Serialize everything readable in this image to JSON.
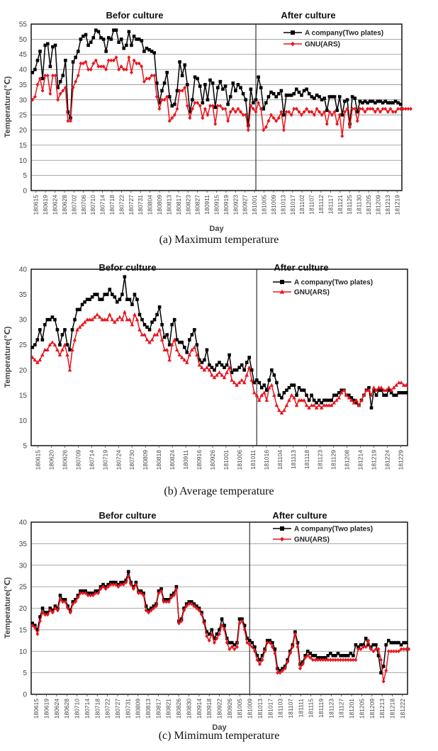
{
  "figure": {
    "captions": [
      "(a) Maximum temperature",
      "(b) Average temperature",
      "(c) Mimimum temperature"
    ],
    "colors": {
      "series_a": "#000000",
      "series_b": "#e8161e",
      "grid": "#8c8c8c",
      "divider": "#333333"
    }
  },
  "chart_data": [
    {
      "type": "line",
      "panel_id": "a",
      "ylabel": "Temperature(℃)",
      "xlabel": "Day",
      "ylim": [
        0,
        55
      ],
      "yticks": [
        0,
        5,
        10,
        15,
        20,
        25,
        30,
        35,
        40,
        45,
        50,
        55
      ],
      "grid": true,
      "legend_position": "top-right",
      "regions": [
        "Befor culture",
        "After culture"
      ],
      "xtick_labels": [
        "180615",
        "180619",
        "180624",
        "180628",
        "180702",
        "180706",
        "180710",
        "180714",
        "180718",
        "180722",
        "180727",
        "180731",
        "180804",
        "180809",
        "180813",
        "180817",
        "180823",
        "180827",
        "180911",
        "180915",
        "180919",
        "180923",
        "180927",
        "181001",
        "181005",
        "181009",
        "181013",
        "181017",
        "181102",
        "181107",
        "181112",
        "181117",
        "181121",
        "181125",
        "181130",
        "181205",
        "181209",
        "181213",
        "181219"
      ],
      "divider_index": 88,
      "series": [
        {
          "name": "A company(Two plates)",
          "marker": "square",
          "values": [
            39,
            40,
            43,
            46,
            37,
            48,
            48.5,
            41,
            47.5,
            48,
            34,
            36,
            38,
            43,
            26,
            24,
            42.5,
            44,
            46,
            50,
            51,
            51.5,
            48,
            49,
            50.5,
            53,
            52.5,
            50.5,
            50,
            46,
            50.5,
            50,
            53,
            53,
            49,
            50,
            47,
            48,
            52.5,
            48,
            51,
            50,
            50,
            49.5,
            46,
            47,
            46.5,
            46,
            45.5,
            35.5,
            29,
            33,
            35.5,
            39,
            31,
            28,
            28.5,
            33,
            42.5,
            38,
            41.5,
            35,
            26,
            30,
            37.5,
            37,
            34.5,
            29,
            35,
            30,
            36.5,
            35.5,
            27.5,
            34,
            36,
            33.5,
            34.5,
            28.5,
            31,
            35.5,
            33,
            35,
            34,
            32,
            30,
            21.5,
            33.5,
            29,
            30,
            37.5,
            34,
            27,
            29,
            31,
            32.5,
            32,
            31,
            32,
            33,
            25,
            31.5,
            31.5,
            31.5,
            32,
            33.5,
            32.5,
            31.5,
            33,
            33.5,
            32,
            31,
            30.5,
            31.5,
            31,
            30,
            30.5,
            26.5,
            31,
            31,
            31,
            26.5,
            31,
            25,
            29.5,
            30,
            22,
            31,
            30.5,
            26,
            29.5,
            29,
            29.5,
            29,
            29.5,
            29.5,
            29,
            29.5,
            29.5,
            29,
            29.5,
            29,
            29,
            29,
            29.5,
            29,
            28.5
          ]
        },
        {
          "name": "GNU(ARS)",
          "marker": "diamond",
          "values": [
            30,
            31,
            35,
            37,
            33,
            38,
            38,
            32,
            38,
            38,
            30,
            32,
            33,
            34,
            23,
            23,
            34,
            36,
            38,
            42,
            42,
            42.5,
            40,
            40,
            42,
            43,
            41,
            41,
            41,
            40,
            43,
            43,
            43,
            44,
            40,
            41,
            40,
            40,
            44,
            39,
            43,
            42,
            42,
            41,
            36,
            37,
            37,
            38,
            38,
            31,
            27,
            30,
            30,
            31,
            23,
            24,
            25,
            27,
            33,
            33,
            34,
            28,
            24,
            27,
            29,
            29,
            28,
            24,
            27,
            25,
            28,
            28,
            22,
            28,
            28,
            27,
            27,
            23,
            26,
            27,
            26,
            27,
            26,
            25,
            25,
            20,
            28,
            27,
            26,
            29,
            27,
            20,
            21,
            23,
            25,
            24,
            23,
            24,
            26,
            20,
            26,
            26,
            25,
            27,
            27,
            26,
            25,
            26,
            27,
            26,
            26,
            25,
            27,
            26,
            25,
            26,
            22,
            26,
            25,
            26,
            22,
            25,
            18,
            26,
            27,
            21,
            27,
            27,
            23,
            27,
            27,
            26,
            27,
            27,
            27,
            26,
            27,
            26,
            27,
            27,
            26,
            27,
            26,
            26,
            27,
            27,
            27,
            27,
            27,
            27
          ]
        }
      ]
    },
    {
      "type": "line",
      "panel_id": "b",
      "ylabel": "Temperature(℃)",
      "xlabel": "",
      "ylim": [
        5,
        40
      ],
      "yticks": [
        5,
        10,
        15,
        20,
        25,
        30,
        35,
        40
      ],
      "grid": false,
      "legend_position": "top-right",
      "regions": [
        "Befor culture",
        "After culture"
      ],
      "xtick_labels": [
        "180615",
        "180620",
        "180626",
        "180709",
        "180714",
        "180719",
        "180724",
        "180730",
        "180809",
        "180818",
        "180824",
        "180911",
        "180916",
        "180926",
        "181001",
        "181006",
        "181011",
        "181016",
        "181104",
        "181113",
        "181118",
        "181123",
        "181129",
        "181208",
        "181214",
        "181219",
        "181224",
        "181229"
      ],
      "divider_index": 90,
      "series": [
        {
          "name": "A company(Two plates)",
          "marker": "square",
          "values": [
            24.5,
            25,
            26,
            28,
            26,
            29,
            30,
            30,
            30.5,
            30,
            28,
            25,
            27,
            28,
            25,
            24,
            28,
            30,
            32,
            32,
            33,
            33.5,
            34,
            34,
            34.5,
            35,
            35,
            34,
            34,
            35,
            35,
            36,
            35,
            34.5,
            33.5,
            34,
            35,
            38.5,
            34,
            34,
            33,
            35,
            34,
            31,
            30,
            29,
            28.5,
            28,
            29.5,
            30,
            31,
            32.5,
            29,
            26.5,
            27,
            25,
            29,
            30,
            26,
            25.5,
            25.5,
            24.5,
            23.5,
            26,
            27,
            28,
            25,
            22,
            21.5,
            22,
            24,
            21,
            20.5,
            20,
            21,
            21.5,
            21,
            20.5,
            21,
            23,
            19.5,
            20,
            20,
            20.5,
            21,
            20,
            21.5,
            22.5,
            20,
            17.5,
            18,
            17.5,
            16.5,
            17,
            16,
            18,
            20,
            19,
            17.5,
            15,
            14.5,
            15.5,
            16,
            16.5,
            17,
            17,
            15,
            16.5,
            16,
            16,
            15,
            14,
            15,
            14,
            13.5,
            14,
            13.5,
            14,
            14,
            14,
            14,
            15,
            15,
            15.5,
            16,
            16,
            15,
            15,
            14.5,
            14,
            13.5,
            13,
            14,
            15,
            16,
            16.5,
            12.5,
            16,
            15,
            16,
            16,
            15,
            15,
            16,
            15.5,
            15,
            15,
            15.5,
            15.5,
            15.5,
            15.5
          ]
        },
        {
          "name": "GNU(ARS)",
          "marker": "triangle",
          "values": [
            22.5,
            22,
            21.5,
            22,
            23,
            24,
            24,
            25,
            25.5,
            25,
            24,
            23,
            24,
            25,
            23,
            20,
            24,
            26,
            28,
            28.5,
            29,
            29.5,
            30,
            30,
            30,
            30.5,
            31,
            30.5,
            30,
            30,
            30,
            31,
            30,
            29.5,
            30,
            30.5,
            30,
            31.5,
            30,
            30,
            29,
            31,
            30,
            28,
            27,
            27,
            26,
            25.5,
            26,
            27,
            27,
            28,
            26,
            24,
            24,
            22,
            25,
            26,
            24,
            23,
            22.5,
            22,
            21.5,
            23,
            24,
            24.5,
            23,
            21,
            20.5,
            20,
            20.5,
            20,
            19,
            18.5,
            19,
            19.5,
            19,
            18.5,
            19.5,
            20.5,
            18,
            17.5,
            17,
            17.5,
            18,
            17.5,
            19,
            20.5,
            18,
            15.5,
            15,
            14,
            15,
            15.5,
            14,
            16.5,
            17,
            15,
            13,
            12,
            11.5,
            12,
            13,
            14,
            15,
            14.5,
            13,
            14,
            14,
            14,
            13,
            12.5,
            13,
            13,
            12.5,
            13,
            12.5,
            13,
            13,
            13,
            13,
            13.5,
            14,
            14.5,
            15.5,
            16,
            15,
            14.5,
            14,
            13.5,
            14,
            13,
            14,
            15,
            16,
            16,
            15,
            16.5,
            16,
            16.5,
            16.5,
            16,
            16,
            16.5,
            16,
            16.5,
            17,
            17.5,
            17.5,
            17,
            17
          ]
        }
      ]
    },
    {
      "type": "line",
      "panel_id": "c",
      "ylabel": "Temperature(℃)",
      "xlabel": "Day",
      "ylim": [
        0,
        40
      ],
      "yticks": [
        0,
        5,
        10,
        15,
        20,
        25,
        30,
        35,
        40
      ],
      "grid": true,
      "legend_position": "top-right",
      "regions": [
        "Befor culture",
        "After culture"
      ],
      "xtick_labels": [
        "180615",
        "180619",
        "180624",
        "180628",
        "180710",
        "180714",
        "180718",
        "180722",
        "180727",
        "180731",
        "180809",
        "180813",
        "180817",
        "180821",
        "180826",
        "180830",
        "180914",
        "180918",
        "180922",
        "180926",
        "181005",
        "181009",
        "181013",
        "181017",
        "181103",
        "181107",
        "181111",
        "181115",
        "181119",
        "181123",
        "181127",
        "181201",
        "181205",
        "181209",
        "181213",
        "181218",
        "181222"
      ],
      "divider_index": 86,
      "series": [
        {
          "name": "A company(Two plates)",
          "marker": "square",
          "values": [
            16.5,
            16,
            15,
            18,
            20,
            19,
            19,
            20,
            19.5,
            20.5,
            20,
            23,
            22,
            22,
            20.5,
            19.5,
            21.5,
            22,
            23,
            24,
            24,
            24,
            23.5,
            23.5,
            23.5,
            24,
            24,
            25,
            25.5,
            25,
            25.5,
            26,
            26,
            26,
            25.5,
            26,
            26,
            26.5,
            28.5,
            26,
            25,
            26,
            24,
            24,
            23.5,
            20.5,
            19.5,
            20,
            20.5,
            21,
            24,
            24.5,
            22,
            22,
            22,
            23,
            23.5,
            25,
            17,
            17.5,
            20,
            21,
            21.5,
            21.5,
            21,
            20.5,
            20,
            19,
            17,
            14.5,
            14,
            15,
            13,
            14,
            15,
            17.5,
            16,
            13,
            12,
            12,
            11.5,
            12,
            17.5,
            17.5,
            16,
            13,
            12.5,
            12,
            11,
            9,
            8,
            9,
            10.5,
            12.5,
            12.5,
            12,
            10.5,
            6,
            5.5,
            6,
            6.5,
            8,
            10,
            11.5,
            14.5,
            12,
            7,
            7.5,
            9,
            10,
            9.5,
            9,
            9,
            8.5,
            8.5,
            8.5,
            8.5,
            9,
            9.5,
            9,
            9,
            9.5,
            9,
            9,
            9,
            9,
            9.5,
            9,
            11.5,
            11,
            11.5,
            11.5,
            13,
            11.5,
            11,
            11.5,
            11.5,
            9,
            5,
            6.5,
            11.5,
            12.5,
            12,
            12,
            12,
            12,
            11.5,
            12,
            12
          ]
        },
        {
          "name": "GNU(ARS)",
          "marker": "diamond",
          "values": [
            16,
            15.5,
            14,
            17,
            19,
            18.5,
            18.5,
            19.5,
            19,
            20,
            19.5,
            22,
            21.5,
            21.5,
            20,
            19,
            21,
            21.5,
            22.5,
            23.5,
            23.5,
            23.5,
            23,
            23,
            23,
            23.5,
            23.5,
            24.5,
            25,
            24.5,
            25,
            25.5,
            25.5,
            25.5,
            25,
            25.5,
            25.5,
            26,
            27.5,
            25.5,
            24.5,
            25.5,
            23.5,
            23.5,
            23,
            19.5,
            19,
            19.5,
            20,
            20.5,
            23.5,
            24,
            21.5,
            21.5,
            21.5,
            22.5,
            23,
            24.5,
            16.5,
            17,
            19.5,
            20.5,
            21,
            21,
            20.5,
            20,
            19.5,
            18.5,
            16.5,
            13.5,
            12.5,
            14,
            12,
            13,
            14,
            16,
            15,
            12,
            10.5,
            11,
            10.5,
            11,
            16.5,
            17,
            15,
            12,
            11.5,
            11,
            10,
            8,
            7,
            8,
            10,
            12,
            12,
            11,
            9.5,
            5,
            5,
            5.5,
            6,
            7.5,
            9.5,
            11,
            14,
            11,
            6,
            7,
            8.5,
            9,
            8.5,
            8,
            8,
            8,
            8,
            8,
            8,
            8,
            8,
            8,
            8,
            8,
            8,
            8,
            8,
            8,
            8,
            8,
            8,
            10.5,
            10.5,
            11,
            11,
            12.5,
            10.5,
            10,
            10.5,
            10.5,
            8,
            3,
            5.5,
            10,
            10,
            10,
            10,
            10,
            10.5,
            10.5,
            10.5,
            10.5
          ]
        }
      ]
    }
  ]
}
